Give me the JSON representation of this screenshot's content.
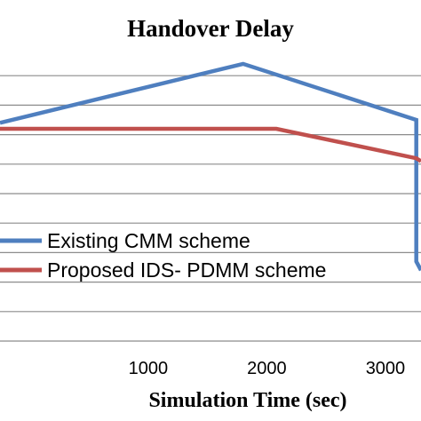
{
  "chart_data": {
    "type": "line",
    "title": "Handover Delay",
    "xlabel": "Simulation Time (sec)",
    "ylabel": "",
    "xlim": [
      -250,
      3300
    ],
    "ylim": [
      0,
      10
    ],
    "grid": true,
    "x_ticks": [
      1000,
      2000,
      3000
    ],
    "x_tick_labels": [
      "1000",
      "2000",
      "3000"
    ],
    "y_gridlines": [
      1,
      2,
      3,
      4,
      5,
      6,
      7,
      8,
      9
    ],
    "legend_placement": "left",
    "series": [
      {
        "name": "Existing CMM scheme",
        "color": "#4F7FBF",
        "points": [
          [
            -250,
            7.4
          ],
          [
            1800,
            9.4
          ],
          [
            3260,
            7.5
          ],
          [
            3260,
            2.7
          ],
          [
            3300,
            2.4
          ]
        ]
      },
      {
        "name": "Proposed IDS- PDMM scheme",
        "color": "#C0504D",
        "points": [
          [
            -250,
            7.2
          ],
          [
            2080,
            7.2
          ],
          [
            3260,
            6.2
          ],
          [
            3300,
            6.1
          ]
        ]
      }
    ]
  }
}
